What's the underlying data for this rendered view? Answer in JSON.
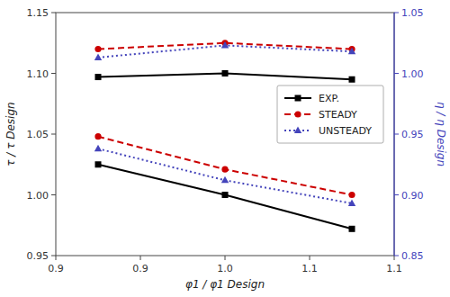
{
  "chart_data": {
    "type": "line",
    "x": [
      0.925,
      1.0,
      1.075
    ],
    "xlabel": "φ1 / φ1 Design",
    "ylabel": "τ / τ Design",
    "y2label": "η / η Design",
    "xlim": [
      0.9,
      1.1
    ],
    "xticks": [
      0.9,
      {
        "value": 0.95,
        "label": "0.9"
      },
      {
        "value": 1.0,
        "label": "1.0"
      },
      {
        "value": 1.05,
        "label": "1.1"
      },
      1.1
    ],
    "ylim": [
      0.95,
      1.15
    ],
    "yticks": [
      0.95,
      {
        "value": 1.0,
        "label": "1.00"
      },
      1.05,
      {
        "value": 1.1,
        "label": "1.10"
      },
      1.15
    ],
    "y2lim": [
      0.85,
      1.05
    ],
    "y2ticks": [
      0.85,
      {
        "value": 0.9,
        "label": "0.90"
      },
      0.95,
      {
        "value": 1.0,
        "label": "1.00"
      },
      1.05
    ],
    "grid": false,
    "legend": "right",
    "series": [
      {
        "name": "EXP.",
        "color": "#000000",
        "marker": "square",
        "line_style": "solid",
        "values": [
          1.025,
          1.0,
          0.972
        ]
      },
      {
        "name": "STEADY",
        "color": "#cc0000",
        "marker": "circle",
        "line_style": "dashed",
        "values": [
          1.048,
          1.021,
          1.0
        ]
      },
      {
        "name": "UNSTEADY",
        "color": "#4444bb",
        "marker": "triangle",
        "line_style": "dotted",
        "values": [
          1.038,
          1.012,
          0.993
        ]
      },
      {
        "axis": "y2",
        "color": "#000000",
        "marker": "square",
        "line_style": "solid",
        "values": [
          0.997,
          1.0,
          0.995
        ]
      },
      {
        "axis": "y2",
        "color": "#cc0000",
        "marker": "circle",
        "line_style": "dashed",
        "values": [
          1.02,
          1.025,
          1.02
        ]
      },
      {
        "axis": "y2",
        "color": "#4444bb",
        "marker": "triangle",
        "line_style": "dotted",
        "values": [
          1.013,
          1.023,
          1.018
        ]
      }
    ]
  }
}
